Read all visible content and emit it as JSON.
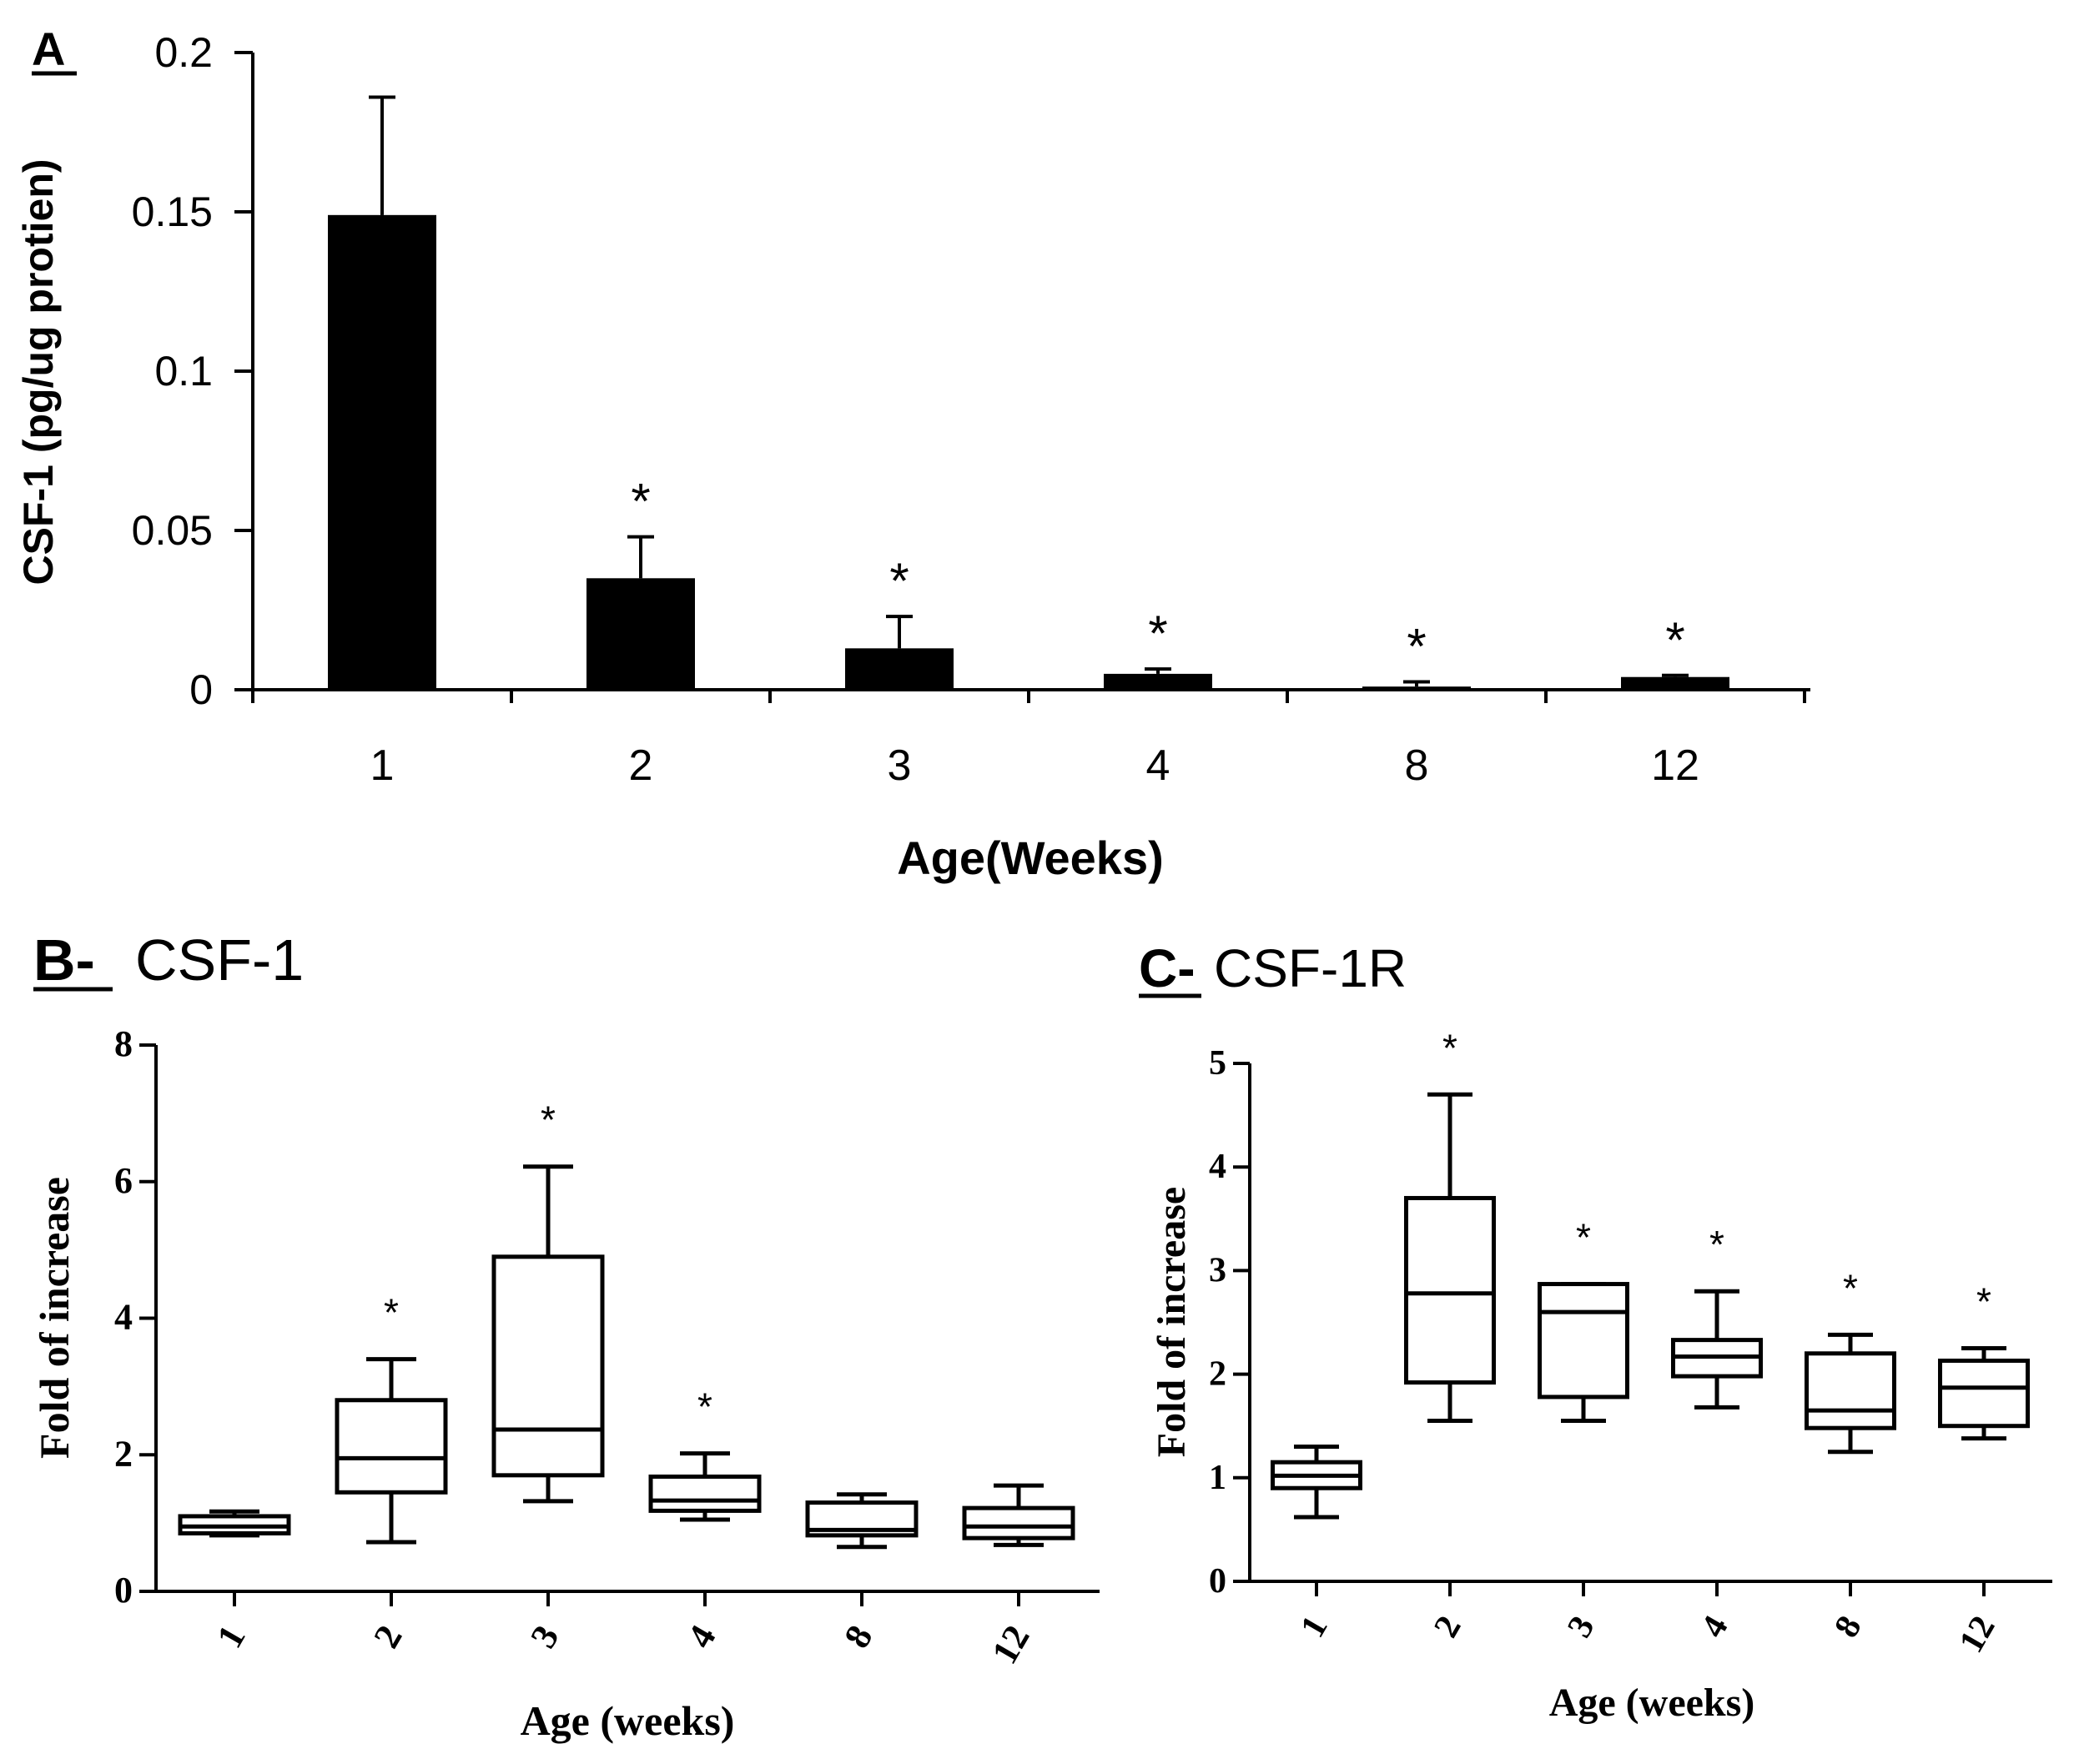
{
  "panels": {
    "a": {
      "letter": "A"
    },
    "b": {
      "letter": "B-",
      "name": "CSF-1"
    },
    "c": {
      "letter": "C-",
      "name": "CSF-1R"
    }
  },
  "chart_data": [
    {
      "id": "A",
      "type": "bar",
      "title": "",
      "xlabel": "Age(Weeks)",
      "ylabel": "CSF-1 (pg/ug protien)",
      "categories": [
        "1",
        "2",
        "3",
        "4",
        "8",
        "12"
      ],
      "values": [
        0.149,
        0.035,
        0.013,
        0.005,
        0.001,
        0.004
      ],
      "errors_upper": [
        0.186,
        0.048,
        0.023,
        0.0065,
        0.0025,
        0.0045
      ],
      "significance": [
        "",
        "*",
        "*",
        "*",
        "*",
        "*"
      ],
      "ylim": [
        0,
        0.2
      ],
      "yticks": [
        "0",
        "0.05",
        "0.1",
        "0.15",
        "0.2"
      ],
      "ytick_values": [
        0,
        0.05,
        0.1,
        0.15,
        0.2
      ],
      "grid": false
    },
    {
      "id": "B",
      "type": "box",
      "title": "CSF-1",
      "xlabel": "Age (weeks)",
      "ylabel": "Fold of increase",
      "categories": [
        "1",
        "2",
        "3",
        "4",
        "8",
        "12"
      ],
      "boxes": [
        {
          "whisker_low": 0.82,
          "q1": 0.85,
          "median": 0.95,
          "q3": 1.1,
          "whisker_high": 1.17
        },
        {
          "whisker_low": 0.72,
          "q1": 1.45,
          "median": 1.95,
          "q3": 2.8,
          "whisker_high": 3.4
        },
        {
          "whisker_low": 1.32,
          "q1": 1.7,
          "median": 2.37,
          "q3": 4.9,
          "whisker_high": 6.22
        },
        {
          "whisker_low": 1.05,
          "q1": 1.18,
          "median": 1.33,
          "q3": 1.68,
          "whisker_high": 2.02
        },
        {
          "whisker_low": 0.65,
          "q1": 0.82,
          "median": 0.9,
          "q3": 1.3,
          "whisker_high": 1.42
        },
        {
          "whisker_low": 0.68,
          "q1": 0.78,
          "median": 0.95,
          "q3": 1.22,
          "whisker_high": 1.55
        }
      ],
      "significance": [
        "",
        "*",
        "*",
        "*",
        "",
        ""
      ],
      "ylim": [
        0,
        8
      ],
      "yticks": [
        "0",
        "2",
        "4",
        "6",
        "8"
      ],
      "ytick_values": [
        0,
        2,
        4,
        6,
        8
      ],
      "grid": false
    },
    {
      "id": "C",
      "type": "box",
      "title": "CSF-1R",
      "xlabel": "Age (weeks)",
      "ylabel": "Fold of increase",
      "categories": [
        "1",
        "2",
        "3",
        "4",
        "8",
        "12"
      ],
      "boxes": [
        {
          "whisker_low": 0.62,
          "q1": 0.9,
          "median": 1.02,
          "q3": 1.15,
          "whisker_high": 1.3
        },
        {
          "whisker_low": 1.55,
          "q1": 1.92,
          "median": 2.78,
          "q3": 3.7,
          "whisker_high": 4.7
        },
        {
          "whisker_low": 1.55,
          "q1": 1.78,
          "median": 2.6,
          "q3": 2.87,
          "whisker_high": 2.87
        },
        {
          "whisker_low": 1.68,
          "q1": 1.98,
          "median": 2.17,
          "q3": 2.33,
          "whisker_high": 2.8
        },
        {
          "whisker_low": 1.25,
          "q1": 1.48,
          "median": 1.65,
          "q3": 2.2,
          "whisker_high": 2.38
        },
        {
          "whisker_low": 1.38,
          "q1": 1.5,
          "median": 1.87,
          "q3": 2.13,
          "whisker_high": 2.25
        }
      ],
      "significance": [
        "",
        "*",
        "*",
        "*",
        "*",
        "*"
      ],
      "ylim": [
        0,
        5
      ],
      "yticks": [
        "0",
        "1",
        "2",
        "3",
        "4",
        "5"
      ],
      "ytick_values": [
        0,
        1,
        2,
        3,
        4,
        5
      ],
      "grid": false
    }
  ]
}
